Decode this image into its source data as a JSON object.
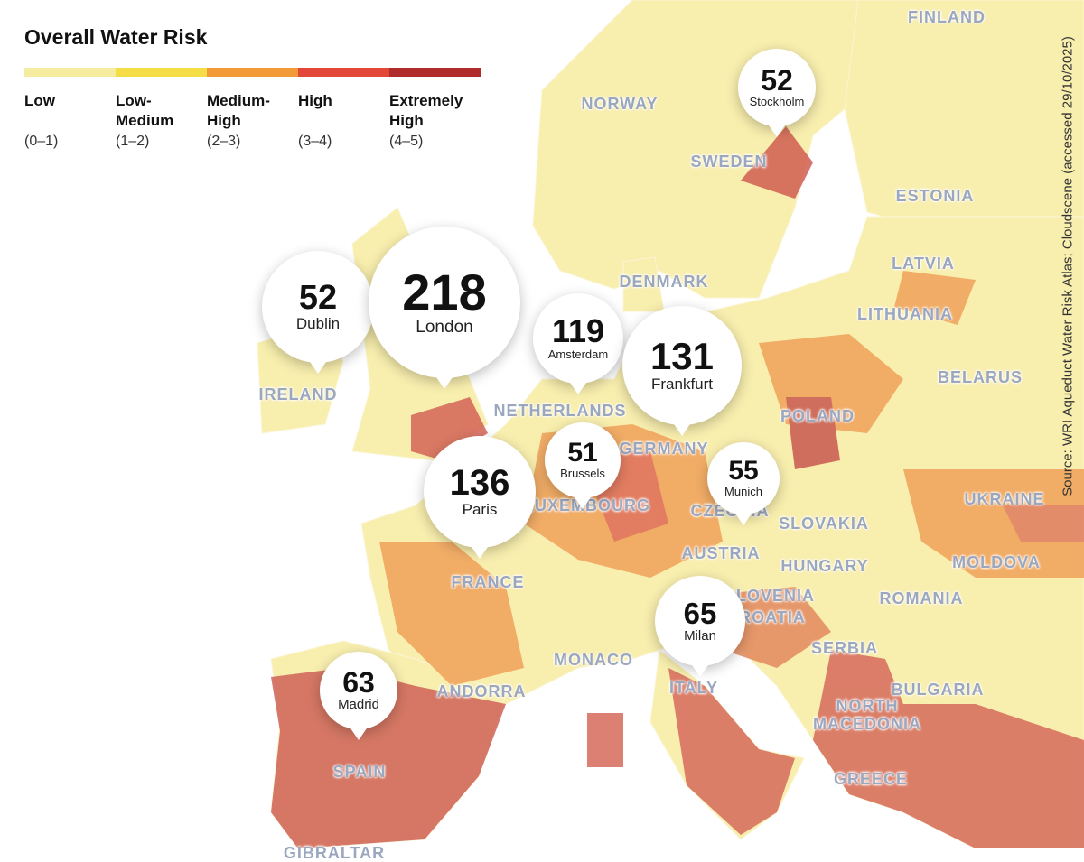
{
  "legend": {
    "title": "Overall Water Risk",
    "categories": [
      {
        "label": "Low",
        "range": "(0–1)",
        "color": "#f6eca0"
      },
      {
        "label": "Low-\nMedium",
        "range": "(1–2)",
        "color": "#f5dd45"
      },
      {
        "label": "Medium-\nHigh",
        "range": "(2–3)",
        "color": "#f29a35"
      },
      {
        "label": "High",
        "range": "(3–4)",
        "color": "#e3473a"
      },
      {
        "label": "Extremely\nHigh",
        "range": "(4–5)",
        "color": "#b02b2b"
      }
    ]
  },
  "source": "Source: WRI Aqueduct Water Risk Atlas; Cloudscene  (accessed 29/10/2025)",
  "countries": [
    "FINLAND",
    "NORWAY",
    "SWEDEN",
    "ESTONIA",
    "LATVIA",
    "LITHUANIA",
    "DENMARK",
    "BELARUS",
    "IRELAND",
    "NETHERLANDS",
    "GERMANY",
    "POLAND",
    "LUXEMBOURG",
    "CZECHIA",
    "UKRAINE",
    "SLOVAKIA",
    "AUSTRIA",
    "HUNGARY",
    "MOLDOVA",
    "FRANCE",
    "SLOVENIA",
    "CROATIA",
    "ROMANIA",
    "SERBIA",
    "MONACO",
    "ANDORRA",
    "ITALY",
    "BULGARIA",
    "NORTH MACEDONIA",
    "SPAIN",
    "GREECE",
    "GIBRALTAR"
  ],
  "markers": [
    {
      "city": "Stockholm",
      "count": "52"
    },
    {
      "city": "Dublin",
      "count": "52"
    },
    {
      "city": "London",
      "count": "218"
    },
    {
      "city": "Amsterdam",
      "count": "119"
    },
    {
      "city": "Frankfurt",
      "count": "131"
    },
    {
      "city": "Brussels",
      "count": "51"
    },
    {
      "city": "Munich",
      "count": "55"
    },
    {
      "city": "Paris",
      "count": "136"
    },
    {
      "city": "Milan",
      "count": "65"
    },
    {
      "city": "Madrid",
      "count": "63"
    }
  ]
}
